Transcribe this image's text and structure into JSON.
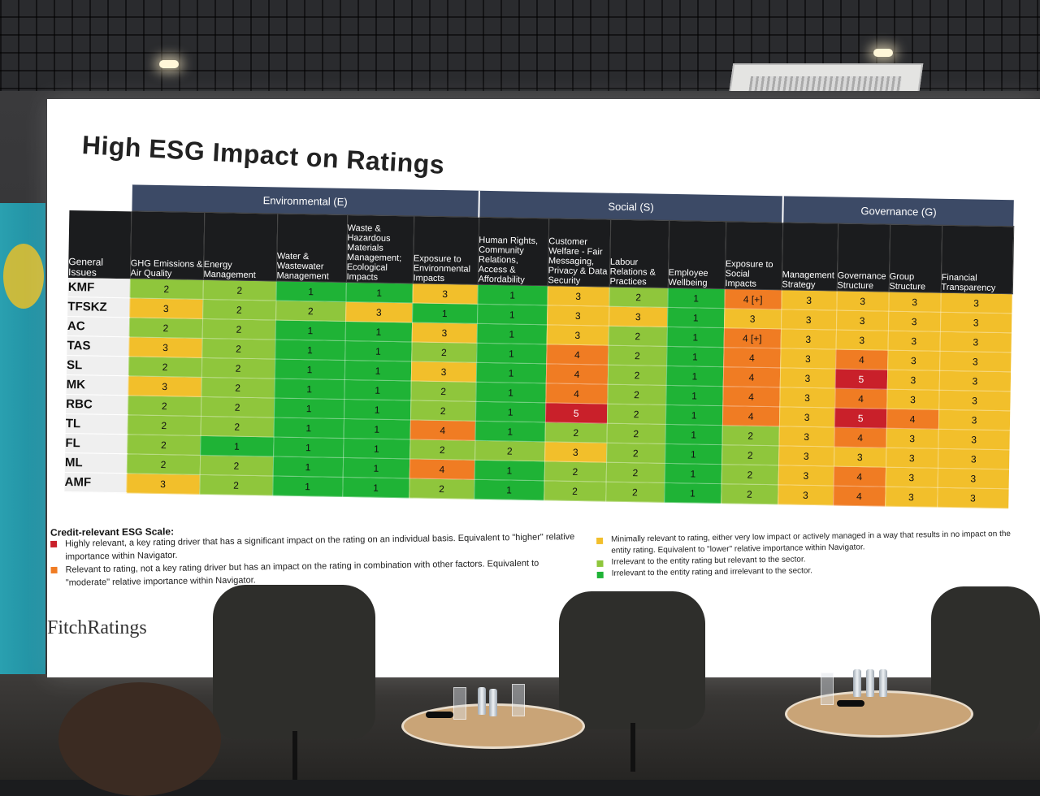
{
  "title": "High ESG Impact on Ratings",
  "groups": [
    {
      "label": "Environmental (E)",
      "span": 5
    },
    {
      "label": "Social (S)",
      "span": 5
    },
    {
      "label": "Governance (G)",
      "span": 4
    }
  ],
  "corner_header": "General Issues",
  "columns": [
    "GHG Emissions & Air Quality",
    "Energy Management",
    "Water & Wastewater Management",
    "Waste & Hazardous Materials Management; Ecological Impacts",
    "Exposure to Environmental Impacts",
    "Human Rights, Community Relations, Access & Affordability",
    "Customer Welfare - Fair Messaging, Privacy & Data Security",
    "Labour Relations & Practices",
    "Employee Wellbeing",
    "Exposure to Social Impacts",
    "Management Strategy",
    "Governance Structure",
    "Group Structure",
    "Financial Transparency"
  ],
  "rows": [
    {
      "name": "KMF",
      "values": [
        "2",
        "2",
        "1",
        "1",
        "3",
        "1",
        "3",
        "2",
        "1",
        "4 [+]",
        "3",
        "3",
        "3",
        "3"
      ]
    },
    {
      "name": "TFSKZ",
      "values": [
        "3",
        "2",
        "2",
        "3",
        "1",
        "1",
        "3",
        "3",
        "1",
        "3",
        "3",
        "3",
        "3",
        "3"
      ]
    },
    {
      "name": "AC",
      "values": [
        "2",
        "2",
        "1",
        "1",
        "3",
        "1",
        "3",
        "2",
        "1",
        "4 [+]",
        "3",
        "3",
        "3",
        "3"
      ]
    },
    {
      "name": "TAS",
      "values": [
        "3",
        "2",
        "1",
        "1",
        "2",
        "1",
        "4",
        "2",
        "1",
        "4",
        "3",
        "4",
        "3",
        "3"
      ]
    },
    {
      "name": "SL",
      "values": [
        "2",
        "2",
        "1",
        "1",
        "3",
        "1",
        "4",
        "2",
        "1",
        "4",
        "3",
        "5",
        "3",
        "3"
      ]
    },
    {
      "name": "MK",
      "values": [
        "3",
        "2",
        "1",
        "1",
        "2",
        "1",
        "4",
        "2",
        "1",
        "4",
        "3",
        "4",
        "3",
        "3"
      ]
    },
    {
      "name": "RBC",
      "values": [
        "2",
        "2",
        "1",
        "1",
        "2",
        "1",
        "5",
        "2",
        "1",
        "4",
        "3",
        "5",
        "4",
        "3"
      ]
    },
    {
      "name": "TL",
      "values": [
        "2",
        "2",
        "1",
        "1",
        "4",
        "1",
        "2",
        "2",
        "1",
        "2",
        "3",
        "4",
        "3",
        "3"
      ]
    },
    {
      "name": "FL",
      "values": [
        "2",
        "1",
        "1",
        "1",
        "2",
        "2",
        "3",
        "2",
        "1",
        "2",
        "3",
        "3",
        "3",
        "3"
      ]
    },
    {
      "name": "ML",
      "values": [
        "2",
        "2",
        "1",
        "1",
        "4",
        "1",
        "2",
        "2",
        "1",
        "2",
        "3",
        "4",
        "3",
        "3"
      ]
    },
    {
      "name": "AMF",
      "values": [
        "3",
        "2",
        "1",
        "1",
        "2",
        "1",
        "2",
        "2",
        "1",
        "2",
        "3",
        "4",
        "3",
        "3"
      ]
    }
  ],
  "legend": {
    "title": "Credit-relevant ESG Scale:",
    "left": [
      {
        "score": "5",
        "text": "Highly relevant, a key rating driver that has a significant impact on the rating on an individual basis. Equivalent to \"higher\" relative importance within Navigator."
      },
      {
        "score": "4",
        "text": "Relevant to rating, not a key rating driver but has an impact on the rating in combination with other factors. Equivalent to \"moderate\" relative importance within Navigator."
      }
    ],
    "right": [
      {
        "score": "3",
        "text": "Minimally relevant to rating, either very low impact or actively managed in a way that results in no impact on the entity rating. Equivalent to \"lower\" relative importance within Navigator."
      },
      {
        "score": "2",
        "text": "Irrelevant to the entity rating but relevant to the sector."
      },
      {
        "score": "1",
        "text": "Irrelevant to the entity rating and irrelevant to the sector."
      }
    ]
  },
  "score_colors": {
    "1": "#1fb336",
    "2": "#8fc63c",
    "3": "#f2bf2b",
    "4": "#f07c23",
    "5": "#c9202a"
  },
  "logo": "FitchRatings"
}
